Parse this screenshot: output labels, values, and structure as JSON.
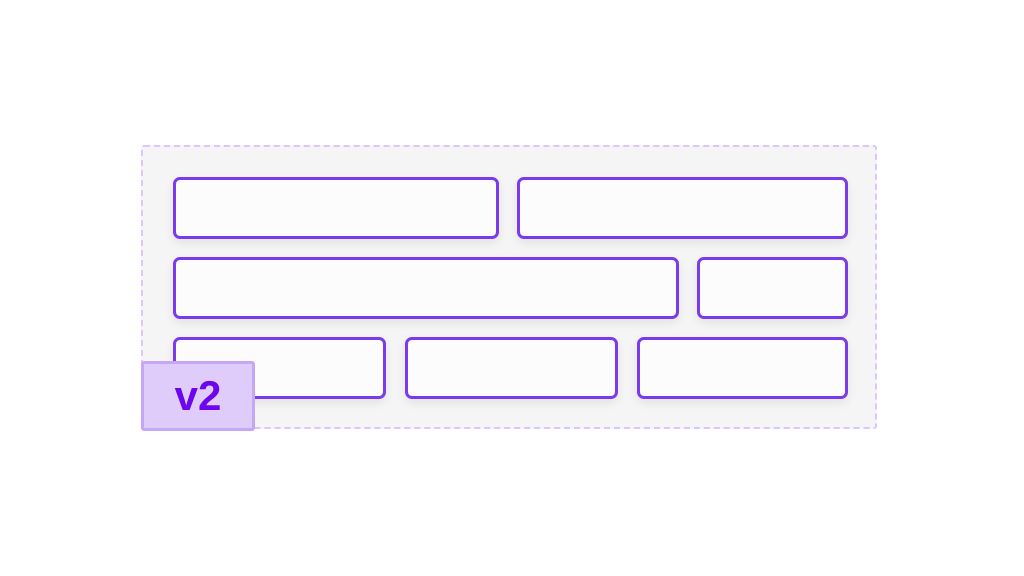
{
  "version_tag": "v2",
  "colors": {
    "box_border": "#7c3aed",
    "frame_border": "#dcc6fb",
    "tag_bg": "#dfccfb",
    "tag_text": "#6d06ee"
  }
}
